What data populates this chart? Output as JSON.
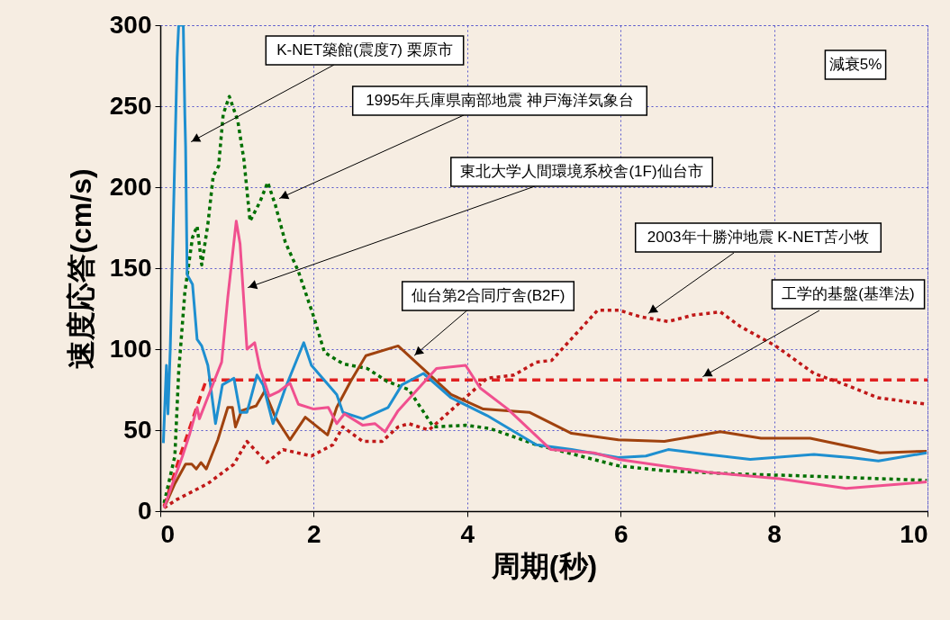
{
  "chart_data": {
    "type": "line",
    "xlabel": "周期(秒)",
    "ylabel": "速度応答(cm/s)",
    "xlim": [
      0,
      10
    ],
    "ylim": [
      0,
      300
    ],
    "xticks": [
      0,
      2,
      4,
      6,
      8,
      10
    ],
    "yticks": [
      0,
      50,
      100,
      150,
      200,
      250,
      300
    ],
    "grid": true,
    "line_style": "solid",
    "annotations": [
      {
        "text": "K-NET築館(震度7) 栗原市",
        "x": 0.4,
        "y": 228
      },
      {
        "text": "1995年兵庫県南部地震  神戸海洋気象台",
        "x": 1.55,
        "y": 193
      },
      {
        "text": "東北大学人間環境系校舎(1F)仙台市",
        "x": 1.14,
        "y": 138
      },
      {
        "text": "仙台第2合同庁舎(B2F)",
        "x": 3.31,
        "y": 96
      },
      {
        "text": "2003年十勝沖地震  K-NET苫小牧",
        "x": 6.36,
        "y": 122
      },
      {
        "text": "工学的基盤(基準法)",
        "x": 7.07,
        "y": 83
      },
      "減衰5%"
    ],
    "series": [
      {
        "color": "#e02020",
        "line_style": "dashed",
        "x": [
          0.05,
          0.25,
          0.54,
          0.6,
          10
        ],
        "values": [
          3,
          33,
          73,
          81,
          81
        ]
      },
      {
        "color": "#c01818",
        "line_style": "dotted",
        "x": [
          0.05,
          0.21,
          0.62,
          0.96,
          1.13,
          1.39,
          1.6,
          1.97,
          2.25,
          2.38,
          2.64,
          2.89,
          3.1,
          3.24,
          3.5,
          4.26,
          4.61,
          4.9,
          5.1,
          5.41,
          5.7,
          5.98,
          6.26,
          6.62,
          6.94,
          7.3,
          7.56,
          8.02,
          8.52,
          8.99,
          9.35,
          9.99
        ],
        "values": [
          2,
          7,
          17,
          29,
          43,
          30,
          38,
          34,
          41,
          52,
          43,
          43,
          52,
          54,
          50,
          82,
          84,
          92,
          93,
          109,
          124,
          124,
          120,
          117,
          121,
          123,
          114,
          102,
          85,
          77,
          70,
          66
        ]
      },
      {
        "color": "#007000",
        "line_style": "dotted",
        "x": [
          0.05,
          0.19,
          0.24,
          0.32,
          0.42,
          0.48,
          0.54,
          0.62,
          0.69,
          0.76,
          0.82,
          0.9,
          1.01,
          1.09,
          1.17,
          1.3,
          1.4,
          1.5,
          1.63,
          1.8,
          2.0,
          2.14,
          2.38,
          2.7,
          2.96,
          3.24,
          3.56,
          3.98,
          4.3,
          4.9,
          5.97,
          6.55,
          7.45,
          8.22,
          9.99
        ],
        "values": [
          5,
          34,
          86,
          135,
          169,
          176,
          152,
          177,
          207,
          213,
          245,
          256,
          241,
          217,
          179,
          191,
          203,
          189,
          166,
          148,
          120,
          98,
          91,
          88,
          80,
          75,
          52,
          53,
          51,
          41,
          28,
          25,
          23,
          22,
          19
        ]
      },
      {
        "color": "#a0420e",
        "x": [
          0.05,
          0.19,
          0.33,
          0.41,
          0.47,
          0.53,
          0.6,
          0.75,
          0.88,
          0.94,
          0.98,
          1.06,
          1.25,
          1.36,
          1.5,
          1.69,
          1.89,
          2.18,
          2.3,
          2.48,
          2.68,
          3.1,
          3.79,
          4.21,
          4.81,
          5.36,
          5.97,
          6.57,
          7.3,
          7.83,
          8.47,
          9.38,
          9.99
        ],
        "values": [
          2,
          17,
          29,
          29,
          26,
          30,
          26,
          44,
          64,
          64,
          52,
          62,
          65,
          74,
          58,
          44,
          58,
          47,
          64,
          80,
          96,
          102,
          72,
          63,
          61,
          48,
          44,
          43,
          49,
          45,
          45,
          36,
          37
        ]
      },
      {
        "color": "#1e8fd0",
        "x": [
          0.04,
          0.08,
          0.1,
          0.13,
          0.18,
          0.22,
          0.24,
          0.3,
          0.32,
          0.33,
          0.35,
          0.42,
          0.48,
          0.54,
          0.62,
          0.72,
          0.81,
          0.96,
          1.04,
          1.13,
          1.26,
          1.34,
          1.47,
          1.63,
          1.87,
          1.97,
          2.3,
          2.38,
          2.64,
          2.97,
          3.15,
          3.43,
          3.79,
          4.26,
          4.9,
          5.36,
          5.97,
          6.33,
          6.62,
          7.13,
          7.69,
          8.52,
          9.0,
          9.36,
          9.99
        ],
        "values": [
          42,
          90,
          60,
          100,
          200,
          280,
          300,
          300,
          245,
          225,
          146,
          140,
          106,
          102,
          90,
          54,
          78,
          82,
          61,
          61,
          84,
          78,
          54,
          76,
          104,
          90,
          72,
          61,
          57,
          64,
          78,
          85,
          70,
          59,
          41,
          38,
          33,
          34,
          38,
          35,
          32,
          35,
          33,
          31,
          36
        ]
      },
      {
        "color": "#f0508f",
        "x": [
          0.05,
          0.16,
          0.29,
          0.38,
          0.48,
          0.51,
          0.65,
          0.8,
          0.88,
          0.99,
          1.04,
          1.13,
          1.23,
          1.3,
          1.42,
          1.55,
          1.69,
          1.8,
          2.0,
          2.19,
          2.3,
          2.4,
          2.64,
          2.8,
          2.93,
          3.1,
          3.6,
          3.98,
          4.17,
          4.53,
          5.09,
          5.65,
          5.97,
          7.13,
          8.07,
          8.94,
          9.99
        ],
        "values": [
          2,
          17,
          34,
          47,
          64,
          57,
          74,
          92,
          132,
          179,
          165,
          100,
          104,
          88,
          71,
          74,
          79,
          66,
          63,
          64,
          54,
          60,
          53,
          54,
          49,
          62,
          88,
          90,
          76,
          63,
          38,
          36,
          32,
          24,
          20,
          14,
          18
        ]
      }
    ]
  }
}
